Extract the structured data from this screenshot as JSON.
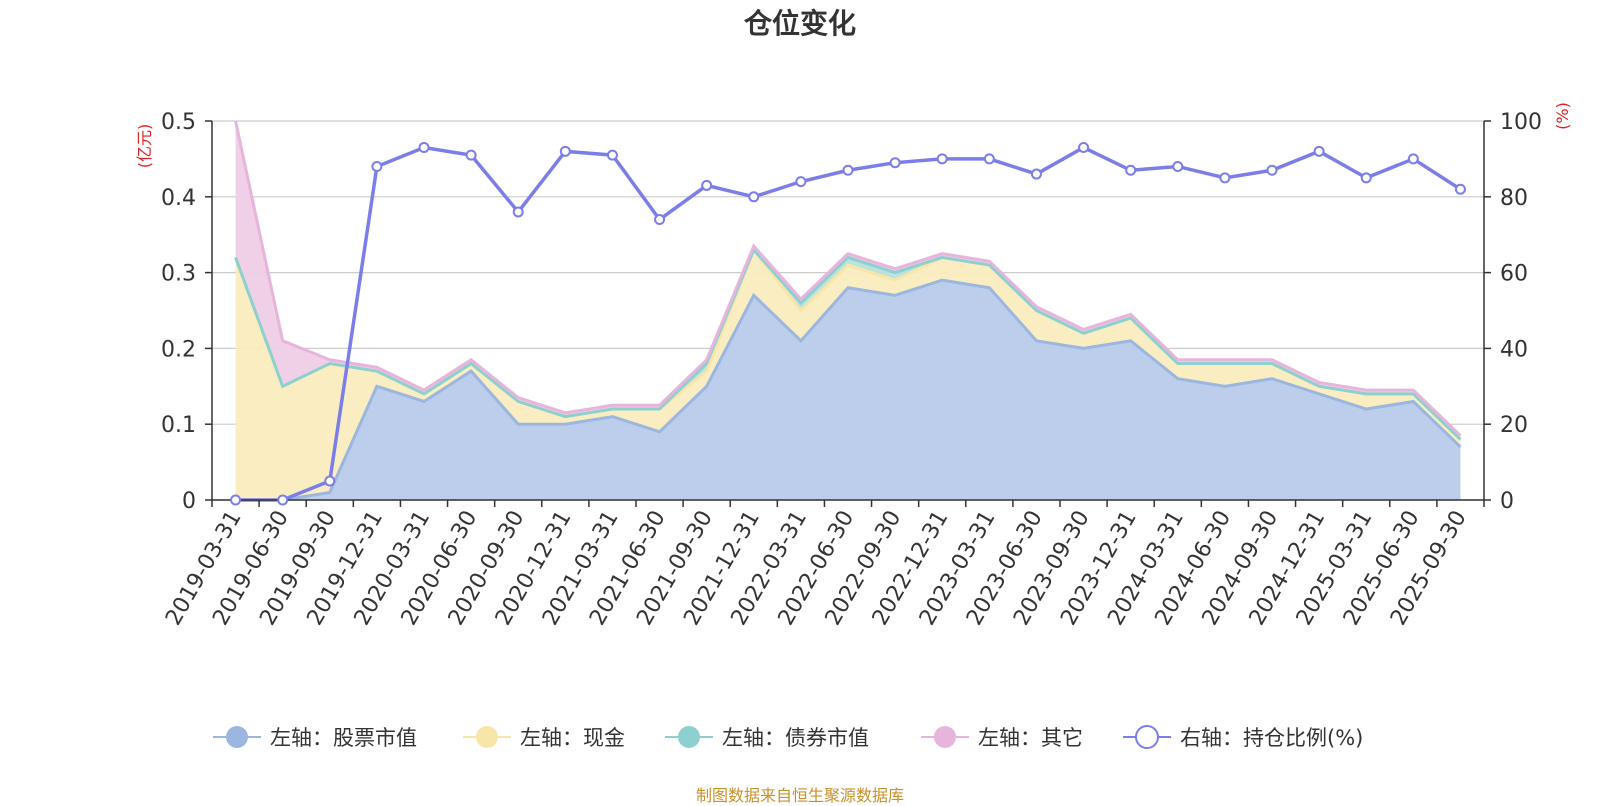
{
  "chart_data": {
    "type": "area",
    "title": "仓位变化",
    "y_left_label": "(亿元)",
    "y_right_label": "(%)",
    "ylim_left": [
      0,
      0.5
    ],
    "ylim_right": [
      0,
      100
    ],
    "y_left_ticks": [
      "0",
      "0.1",
      "0.2",
      "0.3",
      "0.4",
      "0.5"
    ],
    "y_right_ticks": [
      "0",
      "20",
      "40",
      "60",
      "80",
      "100"
    ],
    "grid": true,
    "legend_position": "bottom",
    "categories": [
      "2019-03-31",
      "2019-06-30",
      "2019-09-30",
      "2019-12-31",
      "2020-03-31",
      "2020-06-30",
      "2020-09-30",
      "2020-12-31",
      "2021-03-31",
      "2021-06-30",
      "2021-09-30",
      "2021-12-31",
      "2022-03-31",
      "2022-06-30",
      "2022-09-30",
      "2022-12-31",
      "2023-03-31",
      "2023-06-30",
      "2023-09-30",
      "2023-12-31",
      "2024-03-31",
      "2024-06-30",
      "2024-09-30",
      "2024-12-31",
      "2025-03-31",
      "2025-06-30",
      "2025-09-30"
    ],
    "series": [
      {
        "name": "左轴：股票市值",
        "axis": "left",
        "kind": "stack-area",
        "color": "#9bb7df",
        "fill": "#b8cbea",
        "values": [
          0,
          0,
          0.01,
          0.15,
          0.13,
          0.17,
          0.1,
          0.1,
          0.11,
          0.09,
          0.15,
          0.27,
          0.21,
          0.28,
          0.27,
          0.29,
          0.28,
          0.21,
          0.2,
          0.21,
          0.16,
          0.15,
          0.16,
          0.14,
          0.12,
          0.13,
          0.07
        ]
      },
      {
        "name": "左轴：现金",
        "axis": "left",
        "kind": "stack-area",
        "color": "#f8e6a8",
        "fill": "#f9ecbe",
        "values": [
          0.32,
          0.15,
          0.17,
          0.02,
          0.01,
          0.01,
          0.03,
          0.01,
          0.01,
          0.03,
          0.02,
          0.06,
          0.04,
          0.03,
          0.02,
          0.03,
          0.03,
          0.04,
          0.02,
          0.03,
          0.02,
          0.03,
          0.02,
          0.01,
          0.02,
          0.01,
          0.01
        ]
      },
      {
        "name": "左轴：债券市值",
        "axis": "left",
        "kind": "stack-area",
        "color": "#8ecfcf",
        "fill": "#b8e0dc",
        "values": [
          0,
          0,
          0,
          0,
          0,
          0,
          0,
          0,
          0,
          0,
          0.01,
          0,
          0.01,
          0.01,
          0.01,
          0,
          0,
          0,
          0,
          0,
          0,
          0,
          0,
          0,
          0,
          0,
          0
        ]
      },
      {
        "name": "左轴：其它",
        "axis": "left",
        "kind": "stack-area",
        "color": "#e7b5dc",
        "fill": "#eecde6",
        "values": [
          0.18,
          0.06,
          0.005,
          0.005,
          0.005,
          0.005,
          0.005,
          0.005,
          0.005,
          0.005,
          0.005,
          0.005,
          0.005,
          0.005,
          0.005,
          0.005,
          0.005,
          0.005,
          0.005,
          0.005,
          0.005,
          0.005,
          0.005,
          0.005,
          0.005,
          0.005,
          0.005
        ]
      },
      {
        "name": "右轴：持仓比例(%)",
        "axis": "right",
        "kind": "line",
        "color": "#7b7ee8",
        "values": [
          0,
          0,
          5,
          88,
          93,
          91,
          76,
          92,
          91,
          74,
          83,
          80,
          84,
          87,
          89,
          90,
          90,
          86,
          93,
          87,
          88,
          85,
          87,
          92,
          85,
          90,
          82
        ]
      }
    ]
  },
  "footer": {
    "source": "制图数据来自恒生聚源数据库"
  }
}
